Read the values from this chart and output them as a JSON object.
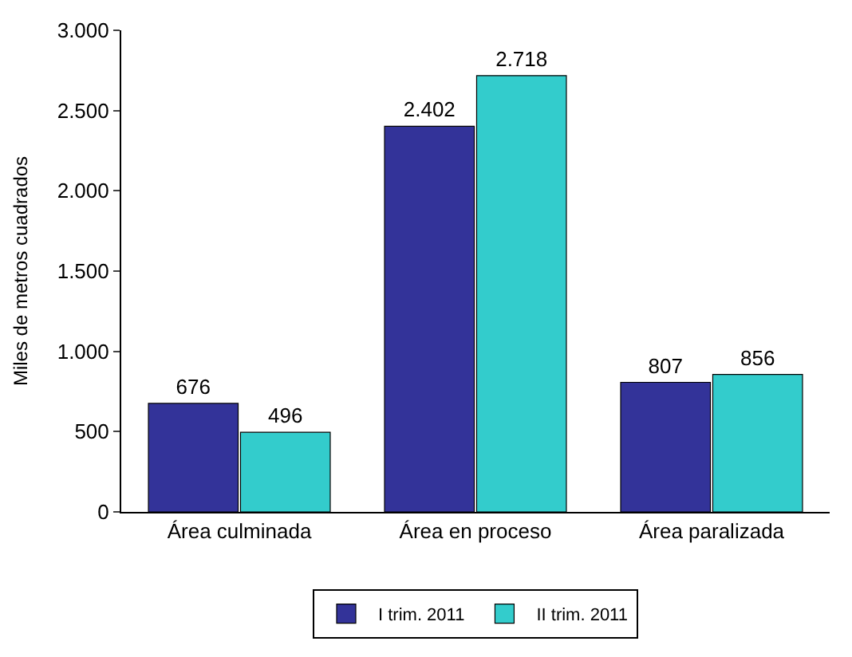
{
  "chart_data": {
    "type": "bar",
    "ylabel": "Miles de metros cuadrados",
    "categories": [
      "Área culminada",
      "Área en proceso",
      "Área paralizada"
    ],
    "series": [
      {
        "name": "I trim. 2011",
        "color": "#333399",
        "values": [
          676,
          2402,
          807
        ],
        "value_labels": [
          "676",
          "2.402",
          "807"
        ]
      },
      {
        "name": "II trim. 2011",
        "color": "#33cccc",
        "values": [
          496,
          2718,
          856
        ],
        "value_labels": [
          "496",
          "2.718",
          "856"
        ]
      }
    ],
    "ylim": [
      0,
      3000
    ],
    "yticks": [
      {
        "value": 0,
        "label": "0"
      },
      {
        "value": 500,
        "label": "500"
      },
      {
        "value": 1000,
        "label": "1.000"
      },
      {
        "value": 1500,
        "label": "1.500"
      },
      {
        "value": 2000,
        "label": "2.000"
      },
      {
        "value": 2500,
        "label": "2.500"
      },
      {
        "value": 3000,
        "label": "3.000"
      }
    ],
    "grid": false,
    "legend": "bottom"
  }
}
